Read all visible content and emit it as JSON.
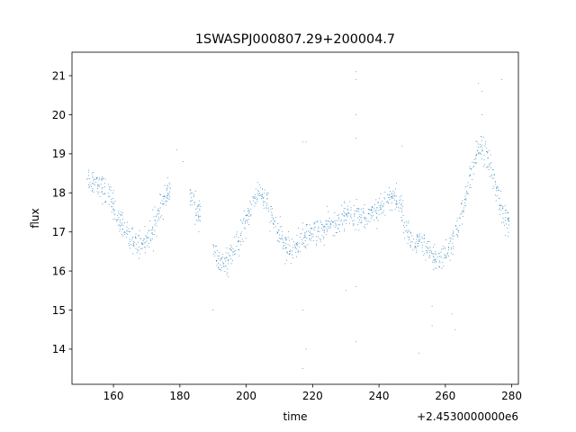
{
  "chart_data": {
    "type": "scatter",
    "title": "1SWASPJ000807.29+200004.7",
    "xlabel": "time",
    "ylabel": "flux",
    "x_offset_text": "+2.4530000000e6",
    "xlim": [
      147.5,
      282
    ],
    "ylim": [
      13.1,
      21.6
    ],
    "xticks": [
      160,
      180,
      200,
      220,
      240,
      260,
      280
    ],
    "yticks": [
      14,
      15,
      16,
      17,
      18,
      19,
      20,
      21
    ],
    "grid": false,
    "legend": "none",
    "color": "#1f77b4",
    "trend": [
      [
        152,
        18.4
      ],
      [
        154,
        18.3
      ],
      [
        156,
        18.2
      ],
      [
        158,
        18.0
      ],
      [
        160,
        17.7
      ],
      [
        162,
        17.2
      ],
      [
        164,
        17.0
      ],
      [
        166,
        16.8
      ],
      [
        168,
        16.7
      ],
      [
        170,
        16.8
      ],
      [
        172,
        17.1
      ],
      [
        174,
        17.5
      ],
      [
        176,
        18.0
      ],
      [
        183,
        18.0
      ],
      [
        185,
        17.5
      ],
      [
        190,
        16.5
      ],
      [
        192,
        16.2
      ],
      [
        194,
        16.2
      ],
      [
        196,
        16.4
      ],
      [
        198,
        16.8
      ],
      [
        200,
        17.3
      ],
      [
        202,
        17.8
      ],
      [
        204,
        18.0
      ],
      [
        206,
        17.8
      ],
      [
        208,
        17.3
      ],
      [
        210,
        16.9
      ],
      [
        212,
        16.6
      ],
      [
        214,
        16.6
      ],
      [
        216,
        16.7
      ],
      [
        218,
        16.9
      ],
      [
        220,
        17.0
      ],
      [
        222,
        17.0
      ],
      [
        224,
        17.1
      ],
      [
        226,
        17.2
      ],
      [
        228,
        17.3
      ],
      [
        230,
        17.4
      ],
      [
        232,
        17.4
      ],
      [
        234,
        17.4
      ],
      [
        236,
        17.4
      ],
      [
        238,
        17.5
      ],
      [
        240,
        17.6
      ],
      [
        242,
        17.8
      ],
      [
        244,
        17.9
      ],
      [
        246,
        17.8
      ],
      [
        248,
        17.2
      ],
      [
        250,
        16.7
      ],
      [
        252,
        16.7
      ],
      [
        254,
        16.6
      ],
      [
        256,
        16.3
      ],
      [
        258,
        16.3
      ],
      [
        260,
        16.4
      ],
      [
        262,
        16.7
      ],
      [
        264,
        17.2
      ],
      [
        266,
        17.8
      ],
      [
        268,
        18.5
      ],
      [
        270,
        19.2
      ],
      [
        272,
        19.1
      ],
      [
        274,
        18.5
      ],
      [
        276,
        17.9
      ],
      [
        278,
        17.3
      ]
    ],
    "outliers": [
      [
        233,
        21.1
      ],
      [
        233,
        20.9
      ],
      [
        233,
        20.0
      ],
      [
        233,
        19.4
      ],
      [
        233,
        15.6
      ],
      [
        233,
        14.2
      ],
      [
        217,
        15.0
      ],
      [
        218,
        14.0
      ],
      [
        217,
        13.5
      ],
      [
        217,
        19.3
      ],
      [
        218,
        19.3
      ],
      [
        230,
        15.5
      ],
      [
        252,
        13.9
      ],
      [
        256,
        15.1
      ],
      [
        256,
        14.6
      ],
      [
        262,
        14.9
      ],
      [
        263,
        14.5
      ],
      [
        270,
        20.8
      ],
      [
        271,
        20.6
      ],
      [
        271,
        20.0
      ],
      [
        277,
        20.9
      ],
      [
        179,
        19.1
      ],
      [
        181,
        18.8
      ],
      [
        190,
        15.0
      ],
      [
        247,
        19.2
      ]
    ]
  }
}
